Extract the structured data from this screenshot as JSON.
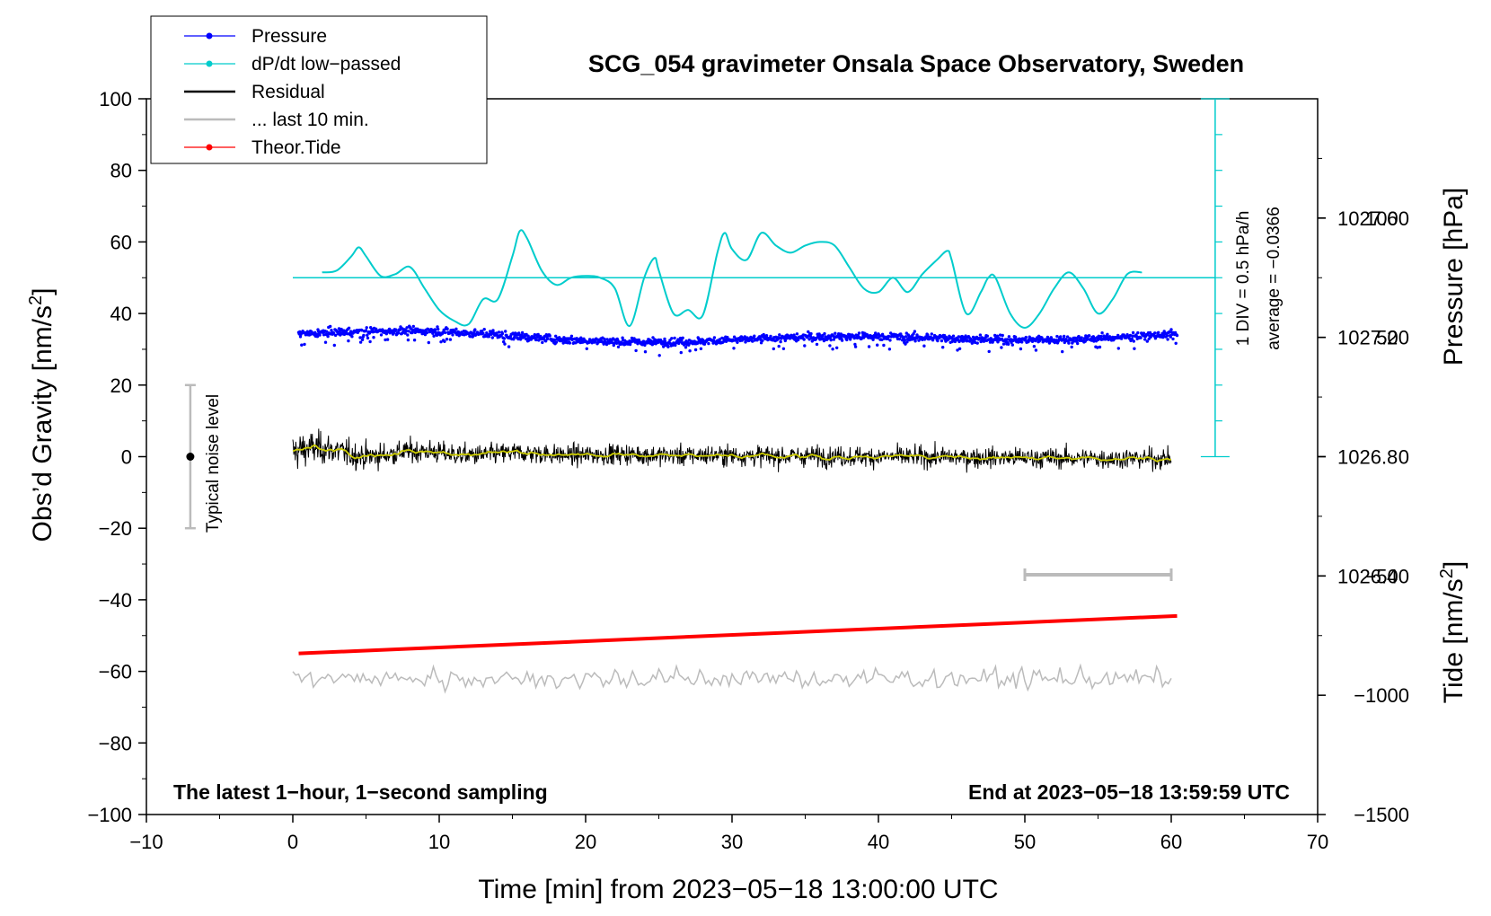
{
  "chart_data": {
    "type": "line",
    "title": "SCG_054 gravimeter Onsala Space Observatory, Sweden",
    "xlabel": "Time [min] from 2023−05−18 13:00:00 UTC",
    "ylabel_left_prefix": "Obs’d Gravity [nm/s",
    "ylabel_right_top": "Pressure [hPa]",
    "ylabel_right_bottom_prefix": "Tide [nm/s",
    "unit_exponent": "2",
    "unit_suffix": "]",
    "xlim": [
      -10,
      70
    ],
    "ylim": [
      -100,
      100
    ],
    "pressure_ylim": [
      1025.6,
      1028.0
    ],
    "tide_ylim": [
      -1500,
      1500
    ],
    "x_ticks": [
      "−10",
      "0",
      "10",
      "20",
      "30",
      "40",
      "50",
      "60",
      "70"
    ],
    "x_tick_values": [
      -10,
      0,
      10,
      20,
      30,
      40,
      50,
      60,
      70
    ],
    "y_ticks": [
      "−100",
      "−80",
      "−60",
      "−40",
      "−20",
      "0",
      "20",
      "40",
      "60",
      "80",
      "100"
    ],
    "y_tick_values": [
      -100,
      -80,
      -60,
      -40,
      -20,
      0,
      20,
      40,
      60,
      80,
      100
    ],
    "pressure_ticks": [
      "1026.4",
      "1026.8",
      "1027.2",
      "1027.6"
    ],
    "pressure_tick_values": [
      1026.4,
      1026.8,
      1027.2,
      1027.6
    ],
    "tide_ticks": [
      "−1500",
      "−1000",
      "−500",
      "0",
      "500",
      "1000"
    ],
    "tide_tick_values": [
      -1500,
      -1000,
      -500,
      0,
      500,
      1000
    ],
    "legend": [
      {
        "label": "Pressure",
        "color": "#0000ff",
        "marker": true
      },
      {
        "label": "dP/dt low−passed",
        "color": "#00cccc",
        "marker": true
      },
      {
        "label": "Residual",
        "color": "#000000",
        "marker": false
      },
      {
        "label": "... last 10 min.",
        "color": "#bbbbbb",
        "marker": false
      },
      {
        "label": "Theor.Tide",
        "color": "#ff0000",
        "marker": true
      }
    ],
    "legend_position": "top-left",
    "series": [
      {
        "name": "Pressure",
        "color": "#0000ff",
        "x_range": [
          0.4,
          60.4
        ],
        "mean_hpa": 1027.2,
        "style": "dots"
      },
      {
        "name": "dP/dt low-passed",
        "color": "#00cccc",
        "style": "line",
        "x": [
          2,
          3,
          4,
          4.5,
          5,
          6,
          7,
          8,
          9,
          10,
          11,
          12,
          13,
          14,
          15,
          15.5,
          16,
          17,
          18,
          19,
          20,
          21,
          22,
          23,
          24,
          24.7,
          25,
          26,
          27,
          28,
          29,
          29.5,
          30,
          31,
          32,
          33,
          34,
          35,
          36,
          37,
          38,
          39,
          40,
          41,
          42,
          43,
          44,
          44.7,
          45,
          46,
          47,
          47.5,
          48,
          49,
          50,
          51,
          52,
          53,
          54,
          55,
          56,
          57,
          58
        ],
        "y": [
          51.5,
          52,
          56,
          58.5,
          56,
          50.5,
          51,
          53,
          47,
          41,
          38,
          37,
          44,
          44,
          56,
          63,
          61,
          52,
          48,
          50,
          50.5,
          50,
          47,
          36.5,
          50,
          55.5,
          52,
          40,
          41,
          39.5,
          57,
          62.5,
          58,
          55,
          62.5,
          59,
          57,
          59,
          60,
          59,
          53,
          47,
          46,
          50,
          46,
          51,
          55,
          57.5,
          55,
          40,
          46,
          50,
          50,
          40,
          36,
          40,
          47,
          51.5,
          47,
          40,
          44,
          51,
          51.5
        ]
      },
      {
        "name": "Residual",
        "color": "#000000",
        "x_range": [
          0,
          60
        ],
        "noise_amplitude": 8,
        "style": "line"
      },
      {
        "name": "Residual smoothed",
        "color": "#cccc00",
        "x_range": [
          0,
          60
        ],
        "style": "line"
      },
      {
        "name": "... last 10 min.",
        "color": "#bbbbbb",
        "x_range": [
          0,
          60
        ],
        "offset": -62,
        "style": "line"
      },
      {
        "name": "Theor.Tide",
        "color": "#ff0000",
        "x": [
          0.4,
          60.4
        ],
        "y": [
          -55,
          -44.5
        ],
        "style": "line"
      }
    ],
    "dpdt_zero_level": 50,
    "dpdt_scale_bar": {
      "x": 63,
      "y_from": 0,
      "y_to": 100,
      "label": "1 DIV = 0.5 hPa/h",
      "average": "average = −0.0366"
    },
    "noise_bar": {
      "x": -7,
      "y_from": -20,
      "y_to": 20,
      "label": "Typical noise level"
    },
    "last10_bar": {
      "x_from": 50,
      "x_to": 60,
      "y": -33
    },
    "note_left": "The latest 1−hour, 1−second sampling",
    "note_right": "End at 2023−05−18 13:59:59 UTC"
  }
}
